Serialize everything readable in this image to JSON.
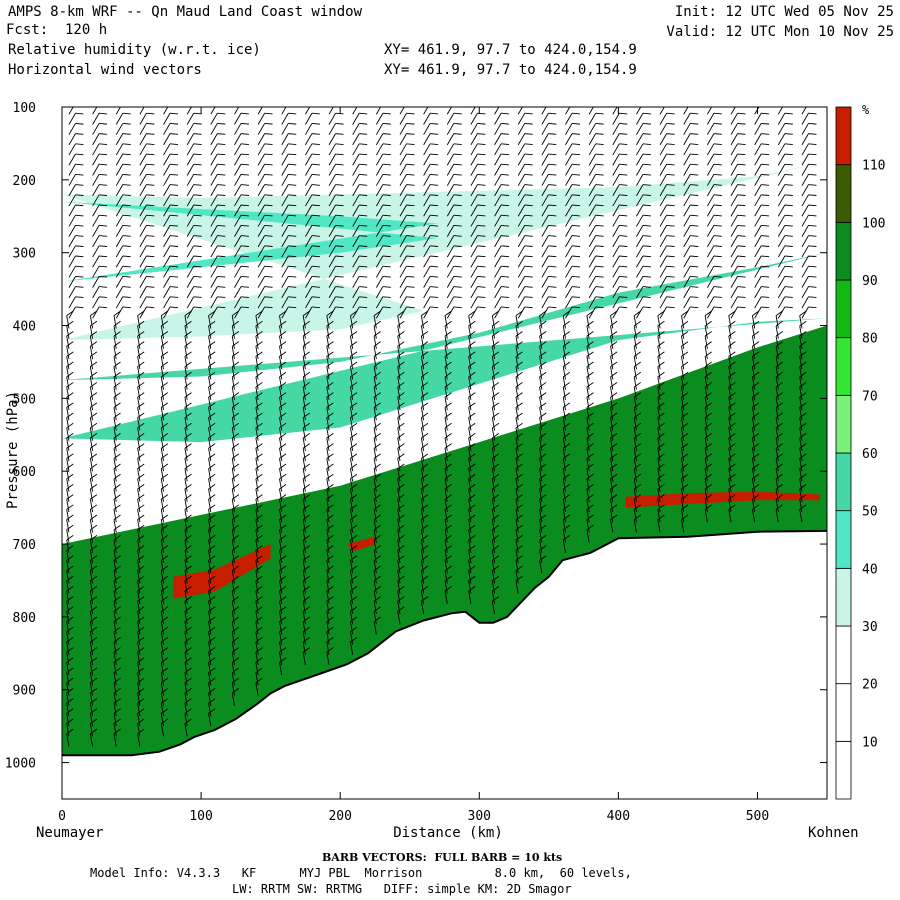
{
  "header": {
    "title": "AMPS 8-km WRF -- Qn Maud Land Coast window",
    "fcst": "Fcst:  120 h",
    "field1": "Relative humidity (w.r.t. ice)",
    "field2": "Horizontal wind vectors",
    "xy1": "XY= 461.9, 97.7 to 424.0,154.9",
    "xy2": "XY= 461.9, 97.7 to 424.0,154.9",
    "init": "Init: 12 UTC Wed 05 Nov 25",
    "valid": "Valid: 12 UTC Mon 10 Nov 25"
  },
  "footer": {
    "barb": "BARB VECTORS:  FULL BARB = 10 kts",
    "model1": "Model Info: V4.3.3   KF      MYJ PBL  Morrison          8.0 km,  60 levels,",
    "model2": "LW: RRTM SW: RRTMG   DIFF: simple KM: 2D Smagor"
  },
  "chart_data": {
    "type": "heatmap",
    "title": "Relative humidity (w.r.t. ice)",
    "xlabel": "Distance (km)",
    "ylabel": "Pressure (hPa)",
    "x_start_label": "Neumayer",
    "x_end_label": "Kohnen",
    "xlim": [
      0,
      550
    ],
    "ylim": [
      100,
      1050
    ],
    "y_inverted": true,
    "x_ticks": [
      0,
      100,
      200,
      300,
      400,
      500
    ],
    "y_ticks": [
      100,
      200,
      300,
      400,
      500,
      600,
      700,
      800,
      900,
      1000
    ],
    "colorbar": {
      "unit": "%",
      "levels": [
        10,
        20,
        30,
        40,
        50,
        60,
        70,
        80,
        90,
        100,
        110
      ],
      "colors": [
        "#ffffff",
        "#ffffff",
        "#ffffff",
        "#c8f5e8",
        "#50e8c4",
        "#45d8a5",
        "#7af27a",
        "#33e633",
        "#14b814",
        "#0a8c1e",
        "#3c5a00",
        "#c81e00"
      ]
    },
    "terrain": {
      "x": [
        0,
        20,
        50,
        70,
        85,
        95,
        110,
        125,
        140,
        150,
        160,
        175,
        190,
        205,
        220,
        240,
        260,
        280,
        290,
        300,
        310,
        320,
        330,
        340,
        350,
        360,
        380,
        400,
        450,
        500,
        550
      ],
      "pressure": [
        990,
        990,
        990,
        985,
        975,
        965,
        955,
        940,
        920,
        905,
        895,
        885,
        875,
        865,
        850,
        820,
        805,
        795,
        793,
        808,
        808,
        800,
        780,
        760,
        745,
        722,
        712,
        692,
        690,
        683,
        682
      ]
    },
    "rh_layers": [
      {
        "level": 30,
        "top": [
          [
            0,
            220
          ],
          [
            100,
            225
          ],
          [
            200,
            220
          ],
          [
            300,
            215
          ],
          [
            400,
            210
          ],
          [
            500,
            195
          ],
          [
            550,
            175
          ]
        ],
        "bottom": [
          [
            0,
            420
          ],
          [
            100,
            415
          ],
          [
            200,
            405
          ],
          [
            260,
            380
          ]
        ]
      },
      {
        "level": 40,
        "top": [
          [
            0,
            230
          ],
          [
            100,
            240
          ],
          [
            200,
            250
          ],
          [
            270,
            260
          ]
        ],
        "bottom": [
          [
            0,
            340
          ],
          [
            100,
            320
          ],
          [
            200,
            300
          ],
          [
            270,
            280
          ]
        ]
      },
      {
        "level": 50,
        "top": [
          [
            0,
            475
          ],
          [
            100,
            470
          ],
          [
            200,
            450
          ],
          [
            300,
            410
          ],
          [
            400,
            355
          ],
          [
            500,
            320
          ],
          [
            550,
            300
          ]
        ],
        "bottom": [
          [
            0,
            555
          ],
          [
            100,
            560
          ],
          [
            200,
            540
          ],
          [
            300,
            480
          ],
          [
            400,
            420
          ],
          [
            500,
            395
          ],
          [
            550,
            390
          ]
        ]
      },
      {
        "level": 90,
        "top": [
          [
            0,
            700
          ],
          [
            100,
            660
          ],
          [
            200,
            620
          ],
          [
            300,
            560
          ],
          [
            400,
            500
          ],
          [
            500,
            430
          ],
          [
            550,
            400
          ]
        ],
        "bottom": "terrain"
      },
      {
        "level": 110,
        "top": [
          [
            80,
            745
          ],
          [
            110,
            735
          ],
          [
            150,
            700
          ]
        ],
        "bottom": [
          [
            150,
            720
          ],
          [
            110,
            765
          ],
          [
            80,
            775
          ]
        ]
      },
      {
        "level": 110,
        "top": [
          [
            205,
            700
          ],
          [
            225,
            690
          ]
        ],
        "bottom": [
          [
            225,
            700
          ],
          [
            210,
            710
          ]
        ]
      },
      {
        "level": 110,
        "top": [
          [
            405,
            635
          ],
          [
            450,
            630
          ],
          [
            500,
            628
          ],
          [
            545,
            632
          ]
        ],
        "bottom": [
          [
            545,
            640
          ],
          [
            500,
            640
          ],
          [
            450,
            645
          ],
          [
            405,
            650
          ]
        ]
      }
    ],
    "wind_barbs": "Horizontal wind vectors; FULL BARB = 10 kts"
  }
}
